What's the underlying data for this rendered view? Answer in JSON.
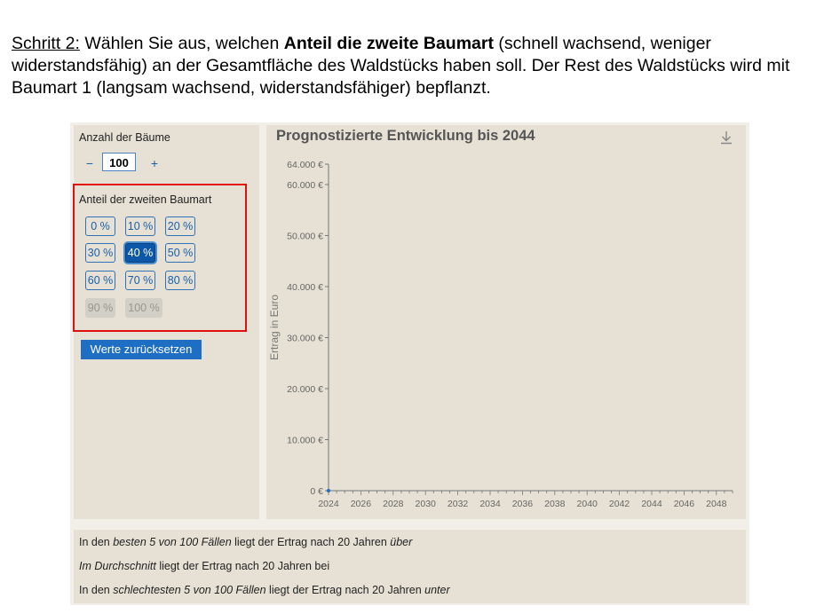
{
  "instruction": {
    "step": "Schritt 2:",
    "part1": " Wählen Sie aus, welchen ",
    "bold": "Anteil die zweite Baumart",
    "part2": " (schnell wachsend, weniger widerstandsfähig) an der Gesamtfläche des Waldstücks haben soll. Der Rest des Waldstücks wird mit Baumart 1 (langsam wachsend, widerstandsfähiger) bepflanzt."
  },
  "trees": {
    "label": "Anzahl der Bäume",
    "minus": "−",
    "plus": "+",
    "value": "100"
  },
  "share": {
    "label": "Anteil der zweiten Baumart",
    "options": [
      "0 %",
      "10 %",
      "20 %",
      "30 %",
      "40 %",
      "50 %",
      "60 %",
      "70 %",
      "80 %",
      "90 %",
      "100 %"
    ],
    "selected": "40 %",
    "disabled": [
      "90 %",
      "100 %"
    ]
  },
  "reset_label": "Werte zurücksetzen",
  "chart_data": {
    "type": "line",
    "title": "Prognostizierte Entwicklung bis 2044",
    "xlabel": "",
    "ylabel": "Ertrag in Euro",
    "x_ticks": [
      "2024",
      "2026",
      "2028",
      "2030",
      "2032",
      "2034",
      "2036",
      "2038",
      "2040",
      "2042",
      "2044",
      "2046",
      "2048"
    ],
    "y_ticks": [
      "0 €",
      "10.000 €",
      "20.000 €",
      "30.000 €",
      "40.000 €",
      "50.000 €",
      "60.000 €",
      "64.000 €"
    ],
    "y_tick_values": [
      0,
      10000,
      20000,
      30000,
      40000,
      50000,
      60000,
      64000
    ],
    "xlim": [
      2024,
      2049
    ],
    "ylim": [
      0,
      64000
    ],
    "series": [
      {
        "values": [
          {
            "x": 2024,
            "y": 0
          }
        ]
      }
    ],
    "download_icon": "download-icon"
  },
  "summary": {
    "best": {
      "p1": "In den ",
      "i1": "besten 5 von 100 Fällen",
      "p2": " liegt der Ertrag nach 20 Jahren ",
      "i2": "über"
    },
    "avg": {
      "i1": "Im Durchschnitt",
      "p1": " liegt der Ertrag nach 20 Jahren bei"
    },
    "worst": {
      "p1": "In den ",
      "i1": "schlechtesten 5 von 100 Fällen",
      "p2": " liegt der Ertrag nach 20 Jahren ",
      "i2": "unter"
    }
  },
  "colors": {
    "accent": "#1e6fc4",
    "selected": "#0c57a8",
    "highlight": "#e01010",
    "panel": "#e6e1d4"
  }
}
